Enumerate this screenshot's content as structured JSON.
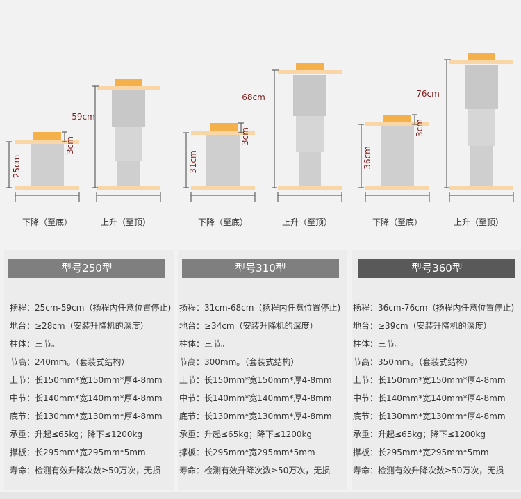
{
  "colors": {
    "background": "#f2f2f2",
    "plate": "#f8d6a5",
    "cap": "#f4b04a",
    "column": "#cfcfcf",
    "dimension_text": "#7a1f1f",
    "header": "#7f7f7f",
    "header_dark": "#595959"
  },
  "models": [
    {
      "name": "型号250型",
      "down_label": "下降（至底）",
      "up_label": "上升（至顶）",
      "down_height": "25cm",
      "up_height": "59cm",
      "cap_height": "3cm",
      "specs": [
        "扬程：25cm-59cm（扬程内任意位置停止)",
        "地台：≥28cm（安装升降机的深度）",
        "柱体：三节。",
        "节高：240mm。（套装式结构）",
        "上节：长150mm*宽150mm*厚4-8mm",
        "中节：长140mm*宽140mm*厚4-8mm",
        "底节：长130mm*宽130mm*厚4-8mm",
        "承重：升起≤65kg；降下≤1200kg",
        "撑板：长295mm*宽295mm*5mm",
        "寿命：检测有效升降次数≥50万次，无损"
      ]
    },
    {
      "name": "型号310型",
      "down_label": "下降（至底）",
      "up_label": "上升（至顶）",
      "down_height": "31cm",
      "up_height": "68cm",
      "cap_height": "3cm",
      "specs": [
        "扬程：31cm-68cm（扬程内任意位置停止)",
        "地台：≥34cm（安装升降机的深度）",
        "柱体：三节。",
        "节高：300mm。（套装式结构）",
        "上节：长150mm*宽150mm*厚4-8mm",
        "中节：长140mm*宽140mm*厚4-8mm",
        "底节：长130mm*宽130mm*厚4-8mm",
        "承重：升起≤65kg；降下≤1200kg",
        "撑板：长295mm*宽295mm*5mm",
        "寿命：检测有效升降次数≥50万次，无损"
      ]
    },
    {
      "name": "型号360型",
      "down_label": "下降（至底）",
      "up_label": "上升（至顶）",
      "down_height": "36cm",
      "up_height": "76cm",
      "cap_height": "3cm",
      "specs": [
        "扬程：36cm-76cm（扬程内任意位置停止)",
        "地台：≥39cm（安装升降机的深度）",
        "柱体：三节。",
        "节高：350mm。（套装式结构）",
        "上节：长150mm*宽150mm*厚4-8mm",
        "中节：长140mm*宽140mm*厚4-8mm",
        "底节：长130mm*宽130mm*厚4-8mm",
        "承重：升起≤65kg；降下≤1200kg",
        "撑板：长295mm*宽295mm*5mm",
        "寿命：检测有效升降次数≥50万次，无损"
      ]
    }
  ]
}
